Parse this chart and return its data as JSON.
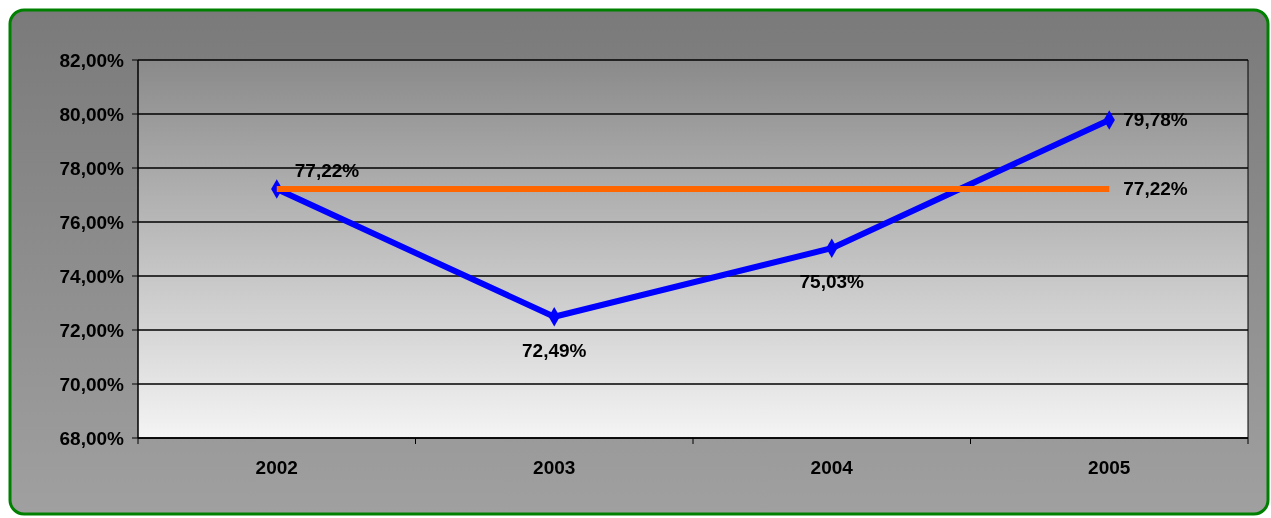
{
  "chart_data": {
    "type": "line",
    "categories": [
      "2002",
      "2003",
      "2004",
      "2005"
    ],
    "series": [
      {
        "color": "#0000ff",
        "values": [
          77.22,
          72.49,
          75.03,
          79.78
        ],
        "marker": "diamond",
        "value_labels": [
          "77,22%",
          "72,49%",
          "75,03%",
          "79,78%"
        ]
      },
      {
        "color": "#ff6600",
        "values": [
          77.22,
          77.22,
          77.22,
          77.22
        ],
        "marker": "none",
        "value_labels": [
          null,
          null,
          null,
          "77,22%"
        ]
      }
    ],
    "ylim": [
      68,
      82
    ],
    "yticks": [
      {
        "value": 68,
        "label": "68,00%"
      },
      {
        "value": 70,
        "label": "70,00%"
      },
      {
        "value": 72,
        "label": "72,00%"
      },
      {
        "value": 74,
        "label": "74,00%"
      },
      {
        "value": 76,
        "label": "76,00%"
      },
      {
        "value": 78,
        "label": "78,00%"
      },
      {
        "value": 80,
        "label": "80,00%"
      },
      {
        "value": 82,
        "label": "82,00%"
      }
    ],
    "grid": "y"
  }
}
